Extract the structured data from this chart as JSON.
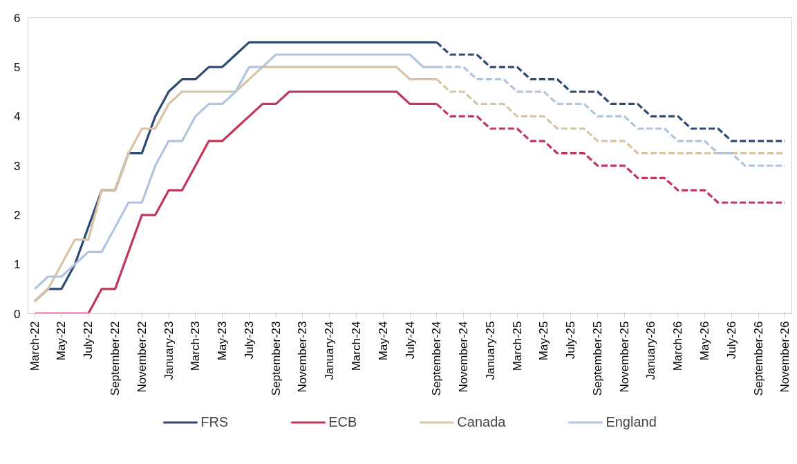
{
  "chart_data": {
    "type": "line",
    "categories": [
      "March-22",
      null,
      "May-22",
      null,
      "July-22",
      null,
      "September-22",
      null,
      "November-22",
      null,
      "January-23",
      null,
      "March-23",
      null,
      "May-23",
      null,
      "July-23",
      null,
      "September-23",
      null,
      "November-23",
      null,
      "January-24",
      null,
      "March-24",
      null,
      "May-24",
      null,
      "July-24",
      null,
      "September-24",
      null,
      "November-24",
      null,
      "January-25",
      null,
      "March-25",
      null,
      "May-25",
      null,
      "July-25",
      null,
      "September-25",
      null,
      "November-25",
      null,
      "January-26",
      null,
      "March-26",
      null,
      "May-26",
      null,
      "July-26",
      null,
      "September-26",
      null,
      "November-26"
    ],
    "ylim": [
      0,
      6
    ],
    "yticks": [
      0,
      1,
      2,
      3,
      4,
      5,
      6
    ],
    "grid": false,
    "legend": "bottom",
    "series": [
      {
        "name": "FRS",
        "color": "#2e4a72",
        "line_style": "solid",
        "values": [
          0.25,
          0.5,
          0.5,
          1.0,
          1.75,
          2.5,
          2.5,
          3.25,
          3.25,
          4.0,
          4.5,
          4.75,
          4.75,
          5.0,
          5.0,
          5.25,
          5.5,
          5.5,
          5.5,
          5.5,
          5.5,
          5.5,
          5.5,
          5.5,
          5.5,
          5.5,
          5.5,
          5.5,
          5.5,
          5.5,
          5.5,
          null,
          null,
          null,
          null,
          null,
          null,
          null,
          null,
          null,
          null,
          null,
          null,
          null,
          null,
          null,
          null,
          null,
          null,
          null,
          null,
          null,
          null,
          null,
          null,
          null,
          null
        ]
      },
      {
        "name": "ECB",
        "color": "#c0375a",
        "line_style": "solid",
        "values": [
          0,
          0,
          0,
          0,
          0,
          0.5,
          0.5,
          1.25,
          2.0,
          2.0,
          2.5,
          2.5,
          3.0,
          3.5,
          3.5,
          3.75,
          4.0,
          4.25,
          4.25,
          4.5,
          4.5,
          4.5,
          4.5,
          4.5,
          4.5,
          4.5,
          4.5,
          4.5,
          4.25,
          4.25,
          4.25,
          null,
          null,
          null,
          null,
          null,
          null,
          null,
          null,
          null,
          null,
          null,
          null,
          null,
          null,
          null,
          null,
          null,
          null,
          null,
          null,
          null,
          null,
          null,
          null,
          null,
          null
        ]
      },
      {
        "name": "Canada",
        "color": "#d9c3a5",
        "line_style": "solid",
        "values": [
          0.25,
          0.5,
          1.0,
          1.5,
          1.5,
          2.5,
          2.5,
          3.25,
          3.75,
          3.75,
          4.25,
          4.5,
          4.5,
          4.5,
          4.5,
          4.5,
          4.75,
          5.0,
          5.0,
          5.0,
          5.0,
          5.0,
          5.0,
          5.0,
          5.0,
          5.0,
          5.0,
          5.0,
          4.75,
          4.75,
          4.75,
          null,
          null,
          null,
          null,
          null,
          null,
          null,
          null,
          null,
          null,
          null,
          null,
          null,
          null,
          null,
          null,
          null,
          null,
          null,
          null,
          null,
          null,
          null,
          null,
          null,
          null
        ]
      },
      {
        "name": "England",
        "color": "#b0c4e0",
        "line_style": "solid",
        "values": [
          0.5,
          0.75,
          0.75,
          1.0,
          1.25,
          1.25,
          1.75,
          2.25,
          2.25,
          3.0,
          3.5,
          3.5,
          4.0,
          4.25,
          4.25,
          4.5,
          5.0,
          5.0,
          5.25,
          5.25,
          5.25,
          5.25,
          5.25,
          5.25,
          5.25,
          5.25,
          5.25,
          5.25,
          5.25,
          5.0,
          5.0,
          null,
          null,
          null,
          null,
          null,
          null,
          null,
          null,
          null,
          null,
          null,
          null,
          null,
          null,
          null,
          null,
          null,
          null,
          null,
          null,
          null,
          null,
          null,
          null,
          null,
          null
        ]
      },
      {
        "color": "#2e4a72",
        "line_style": "dashed",
        "values": [
          null,
          null,
          null,
          null,
          null,
          null,
          null,
          null,
          null,
          null,
          null,
          null,
          null,
          null,
          null,
          null,
          null,
          null,
          null,
          null,
          null,
          null,
          null,
          null,
          null,
          null,
          null,
          null,
          null,
          null,
          5.5,
          5.25,
          5.25,
          5.25,
          5.0,
          5.0,
          5.0,
          4.75,
          4.75,
          4.75,
          4.5,
          4.5,
          4.5,
          4.25,
          4.25,
          4.25,
          4.0,
          4.0,
          4.0,
          3.75,
          3.75,
          3.75,
          3.5,
          3.5,
          3.5,
          3.5,
          3.5
        ]
      },
      {
        "color": "#c0375a",
        "line_style": "dashed",
        "values": [
          null,
          null,
          null,
          null,
          null,
          null,
          null,
          null,
          null,
          null,
          null,
          null,
          null,
          null,
          null,
          null,
          null,
          null,
          null,
          null,
          null,
          null,
          null,
          null,
          null,
          null,
          null,
          null,
          null,
          null,
          4.25,
          4.0,
          4.0,
          4.0,
          3.75,
          3.75,
          3.75,
          3.5,
          3.5,
          3.25,
          3.25,
          3.25,
          3.0,
          3.0,
          3.0,
          2.75,
          2.75,
          2.75,
          2.5,
          2.5,
          2.5,
          2.25,
          2.25,
          2.25,
          2.25,
          2.25,
          2.25
        ]
      },
      {
        "color": "#d9c3a5",
        "line_style": "dashed",
        "values": [
          null,
          null,
          null,
          null,
          null,
          null,
          null,
          null,
          null,
          null,
          null,
          null,
          null,
          null,
          null,
          null,
          null,
          null,
          null,
          null,
          null,
          null,
          null,
          null,
          null,
          null,
          null,
          null,
          null,
          null,
          4.75,
          4.5,
          4.5,
          4.25,
          4.25,
          4.25,
          4.0,
          4.0,
          4.0,
          3.75,
          3.75,
          3.75,
          3.5,
          3.5,
          3.5,
          3.25,
          3.25,
          3.25,
          3.25,
          3.25,
          3.25,
          3.25,
          3.25,
          3.25,
          3.25,
          3.25,
          3.25
        ]
      },
      {
        "color": "#b0c4e0",
        "line_style": "dashed",
        "values": [
          null,
          null,
          null,
          null,
          null,
          null,
          null,
          null,
          null,
          null,
          null,
          null,
          null,
          null,
          null,
          null,
          null,
          null,
          null,
          null,
          null,
          null,
          null,
          null,
          null,
          null,
          null,
          null,
          null,
          null,
          5.0,
          5.0,
          5.0,
          4.75,
          4.75,
          4.75,
          4.5,
          4.5,
          4.5,
          4.25,
          4.25,
          4.25,
          4.0,
          4.0,
          4.0,
          3.75,
          3.75,
          3.75,
          3.5,
          3.5,
          3.5,
          3.25,
          3.25,
          3.0,
          3.0,
          3.0,
          3.0
        ]
      }
    ]
  }
}
